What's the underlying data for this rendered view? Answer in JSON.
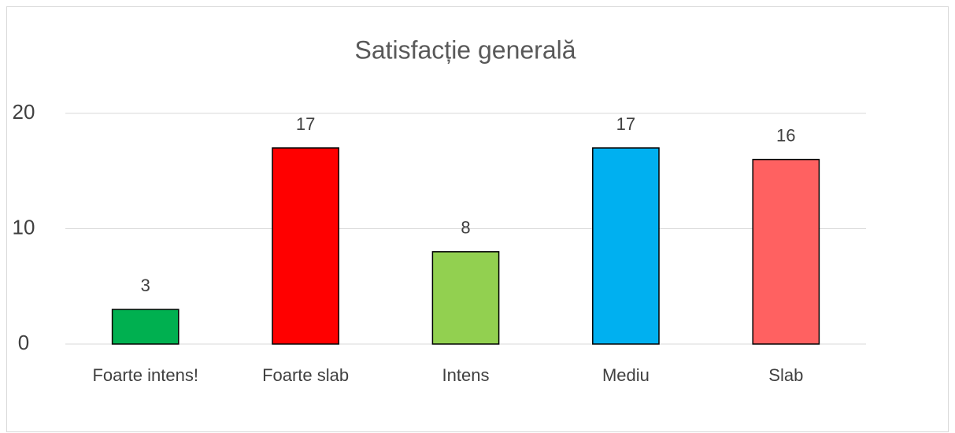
{
  "chart_data": {
    "type": "bar",
    "title": "Satisfacție generală",
    "categories": [
      "Foarte intens!",
      "Foarte slab",
      "Intens",
      "Mediu",
      "Slab"
    ],
    "values": [
      3,
      17,
      8,
      17,
      16
    ],
    "colors": [
      "#00b050",
      "#ff0000",
      "#92d050",
      "#00b0f0",
      "#ff6161"
    ],
    "ylim": [
      0,
      20
    ],
    "yticks": [
      0,
      10,
      20
    ],
    "grid": true,
    "data_labels": true
  }
}
